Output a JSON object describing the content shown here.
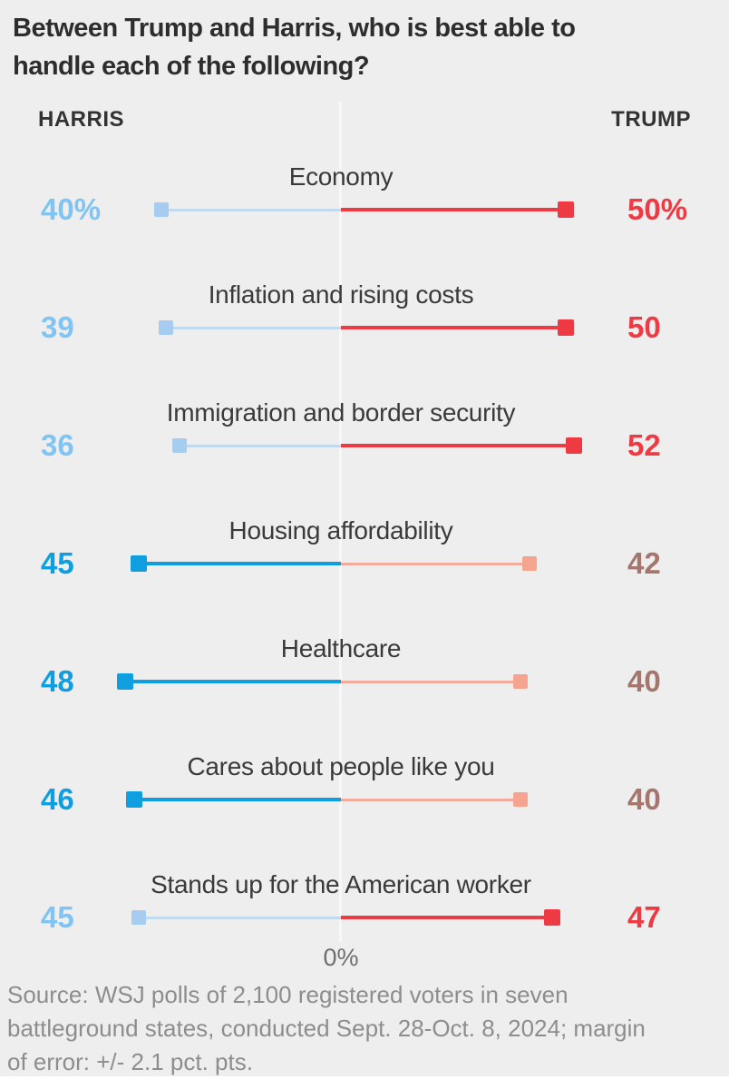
{
  "header": {
    "title_lines": [
      "Between Trump and Harris, who is best able to",
      "handle each of the following?"
    ],
    "harris_label": "HARRIS",
    "trump_label": "TRUMP"
  },
  "axis": {
    "zero_label": "0%"
  },
  "footer": {
    "lines": [
      "Source: WSJ polls of 2,100 registered voters in seven",
      "battleground states, conducted Sept. 28-Oct. 8, 2024; margin",
      "of error: +/- 2.1 pct. pts."
    ]
  },
  "colors": {
    "background": "#eeeeee",
    "axis_line": "#f7f7f7",
    "harris_strong": "#0f9ee0",
    "harris_light_marker": "#a6cdf0",
    "harris_light_line": "#c2daee",
    "harris_light_text": "#7fc4f2",
    "trump_strong": "#ee3b43",
    "trump_light_marker": "#f5a58f",
    "trump_light_line": "#f3ac9b",
    "trump_light_text": "#a5766e"
  },
  "chart_data": {
    "type": "bar",
    "subtype": "diverging-dumbbell",
    "title": "Between Trump and Harris, who is best able to handle each of the following?",
    "xlabel": "",
    "ylabel": "",
    "axis_zero_label": "0%",
    "legend_position": "top (HARRIS left, TRUMP right)",
    "grid": false,
    "categories": [
      "Economy",
      "Inflation and rising costs",
      "Immigration and border security",
      "Housing affordability",
      "Healthcare",
      "Cares about people like you",
      "Stands up for the American worker"
    ],
    "series": [
      {
        "name": "Harris",
        "values": [
          40,
          39,
          36,
          45,
          48,
          46,
          45
        ]
      },
      {
        "name": "Trump",
        "values": [
          50,
          50,
          52,
          42,
          40,
          40,
          47
        ]
      }
    ],
    "rows": [
      {
        "label": "Economy",
        "harris": 40,
        "trump": 50,
        "harris_display": "40%",
        "trump_display": "50%"
      },
      {
        "label": "Inflation and rising costs",
        "harris": 39,
        "trump": 50,
        "harris_display": "39",
        "trump_display": "50"
      },
      {
        "label": "Immigration and border security",
        "harris": 36,
        "trump": 52,
        "harris_display": "36",
        "trump_display": "52"
      },
      {
        "label": "Housing affordability",
        "harris": 45,
        "trump": 42,
        "harris_display": "45",
        "trump_display": "42"
      },
      {
        "label": "Healthcare",
        "harris": 48,
        "trump": 40,
        "harris_display": "48",
        "trump_display": "40"
      },
      {
        "label": "Cares about people like you",
        "harris": 46,
        "trump": 40,
        "harris_display": "46",
        "trump_display": "40"
      },
      {
        "label": "Stands up for the American worker",
        "harris": 45,
        "trump": 47,
        "harris_display": "45",
        "trump_display": "47"
      }
    ]
  }
}
